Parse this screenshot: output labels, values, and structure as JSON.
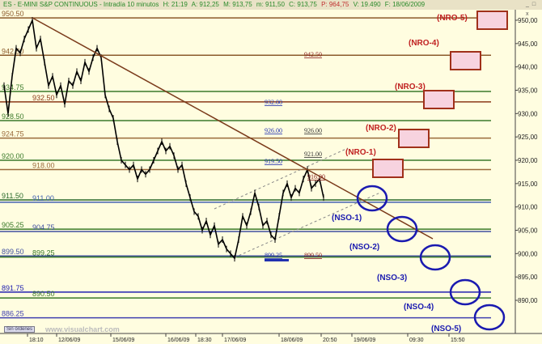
{
  "header": {
    "symbol": "ES - E-MINI S&P CONTINUOUS - Intradía 10 minutos",
    "h": "H: 21:19",
    "a": "A: 912,25",
    "m": "M: 913,75",
    "mn": "m: 911,50",
    "c": "C: 913,75",
    "p": "P: 964,75",
    "v": "V: 19.490",
    "f": "F: 18/06/2009"
  },
  "window_buttons": "_ □ x",
  "footer": {
    "orders_button": "Sin órdenes",
    "watermark": "www.visualchart.com"
  },
  "chart_data": {
    "type": "line",
    "title": "",
    "ylim": [
      884,
      952
    ],
    "y_ticks": [
      "950,00",
      "945,00",
      "940,00",
      "935,00",
      "930,00",
      "925,00",
      "920,00",
      "915,00",
      "910,00",
      "905,00",
      "900,00",
      "895,00",
      "890,00"
    ],
    "y_tick_values": [
      950,
      945,
      940,
      935,
      930,
      925,
      920,
      915,
      910,
      905,
      900,
      895,
      890
    ],
    "x_ticks": [
      "18:10",
      "12/06/09",
      "15/06/09",
      "16/06/09",
      "18:30",
      "17/06/09",
      "18/06/09",
      "20:50",
      "19/06/09",
      "09:30",
      "15:50"
    ],
    "close": [
      936,
      930,
      938,
      944,
      943,
      946,
      948,
      950,
      944,
      946,
      941,
      936,
      938,
      934,
      936,
      932,
      937,
      936,
      939,
      937,
      941,
      939,
      942,
      944,
      942,
      934,
      931,
      929,
      924,
      920,
      919,
      918,
      919,
      916,
      918,
      917,
      918,
      920,
      922,
      924,
      922,
      923,
      921,
      918,
      919,
      915,
      912,
      909,
      908,
      905,
      907,
      904,
      906,
      902,
      903,
      901,
      900,
      899,
      903,
      908,
      906,
      909,
      913,
      910,
      906,
      907,
      904,
      903,
      908,
      913,
      915,
      912,
      914,
      913,
      916,
      918,
      914,
      915,
      916,
      912
    ],
    "levels": [
      {
        "value": 950.5,
        "label": "950.50",
        "color": "#8b5a2b"
      },
      {
        "value": 942.5,
        "label": "942.50",
        "color": "#8b5a2b"
      },
      {
        "value": 934.75,
        "label": "934.75",
        "color": "#3a7a2a"
      },
      {
        "value": 932.5,
        "label": "932.50",
        "color": "#8b3a1a"
      },
      {
        "value": 928.5,
        "label": "928.50",
        "color": "#3a7a2a"
      },
      {
        "value": 924.75,
        "label": "924.75",
        "color": "#9a6a3a"
      },
      {
        "value": 920.0,
        "label": "920.00",
        "color": "#3a7a2a"
      },
      {
        "value": 918.0,
        "label": "918.00",
        "color": "#9a6a3a"
      },
      {
        "value": 911.5,
        "label": "911.50",
        "color": "#2a6a2a"
      },
      {
        "value": 911.0,
        "label": "911.00",
        "color": "#4060b0"
      },
      {
        "value": 905.25,
        "label": "905.25",
        "color": "#3a7a2a"
      },
      {
        "value": 904.75,
        "label": "904.75",
        "color": "#4050a0"
      },
      {
        "value": 899.5,
        "label": "899.50",
        "color": "#4050a0"
      },
      {
        "value": 899.25,
        "label": "899.25",
        "color": "#3a7a2a"
      },
      {
        "value": 891.75,
        "label": "891.75",
        "color": "#2020b0"
      },
      {
        "value": 890.5,
        "label": "890.50",
        "color": "#3a7a2a"
      },
      {
        "value": 886.25,
        "label": "886.25",
        "color": "#4040b0"
      }
    ],
    "annotations": [
      {
        "text": "942.50",
        "color": "#8b2020"
      },
      {
        "text": "932.00",
        "color": "#2030b0"
      },
      {
        "text": "926.00",
        "color": "#2030b0"
      },
      {
        "text": "926.00",
        "color": "#333"
      },
      {
        "text": "921.00",
        "color": "#333"
      },
      {
        "text": "919.50",
        "color": "#2030b0"
      },
      {
        "text": "916.00",
        "color": "#8b2020"
      },
      {
        "text": "899.25",
        "color": "#2030b0"
      },
      {
        "text": "899.50",
        "color": "#8b2020"
      }
    ],
    "resistance_zones": [
      "(NRO-1)",
      "(NRO-2)",
      "(NRO-3)",
      "(NRO-4)",
      "(NRO-5)"
    ],
    "support_zones": [
      "(NSO-1)",
      "(NSO-2)",
      "(NSO-3)",
      "(NSO-4)",
      "(NSO-5)"
    ],
    "colors": {
      "price": "#000000",
      "trendline": "#7a3a1a",
      "resistance": "#c02020",
      "support": "#1a1ab0",
      "background": "#fffde0"
    }
  }
}
